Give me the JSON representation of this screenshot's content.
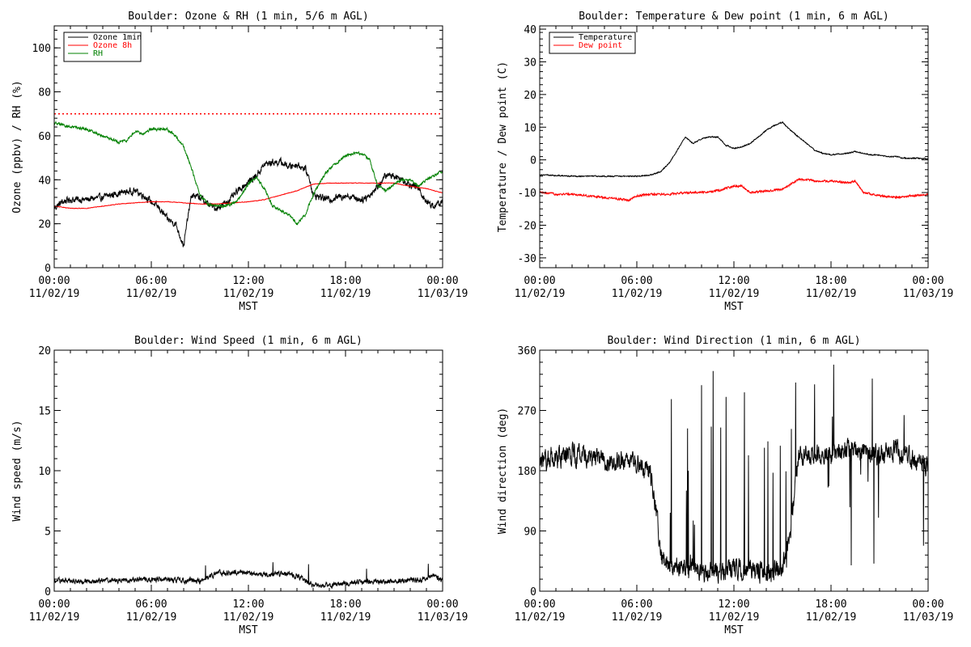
{
  "chart_data": [
    {
      "type": "line",
      "title": "Boulder: Ozone & RH (1 min, 5/6 m AGL)",
      "xlabel": "MST",
      "ylabel": "Ozone (ppbv) / RH (%)",
      "xlim": [
        0,
        24
      ],
      "ylim": [
        0,
        110
      ],
      "yticks": [
        0,
        20,
        40,
        60,
        80,
        100
      ],
      "xticks": [
        "00:00|11/02/19",
        "06:00|11/02/19",
        "12:00|11/02/19",
        "18:00|11/02/19",
        "00:00|11/03/19"
      ],
      "legend": {
        "position": "top-left",
        "entries": [
          {
            "name": "Ozone 1min",
            "color": "#000000"
          },
          {
            "name": "Ozone 8h",
            "color": "#ff0000"
          },
          {
            "name": "RH",
            "color": "#008000"
          }
        ]
      },
      "reference_line": {
        "y": 70,
        "color": "#ff0000",
        "style": "dotted"
      },
      "series": [
        {
          "name": "Ozone 1min",
          "color": "#000000",
          "noise": 2.5,
          "x": [
            0,
            0.5,
            1,
            2,
            3,
            4,
            5,
            5.5,
            6,
            6.5,
            7,
            7.5,
            7.8,
            8,
            8.3,
            8.5,
            9,
            9.5,
            10,
            10.5,
            11,
            11.5,
            12,
            12.5,
            13,
            13.5,
            14,
            14.5,
            15,
            15.5,
            15.8,
            16,
            16.5,
            17,
            17.5,
            18,
            18.5,
            19,
            19.5,
            20,
            20.5,
            21,
            21.5,
            22,
            22.5,
            23,
            23.5,
            24
          ],
          "y": [
            27,
            30,
            31,
            31,
            32,
            34,
            35,
            33,
            30,
            27,
            22,
            20,
            14,
            10,
            25,
            33,
            32,
            29,
            27,
            29,
            32,
            36,
            39,
            42,
            47,
            48,
            48,
            46,
            47,
            45,
            40,
            33,
            32,
            31,
            32,
            33,
            32,
            31,
            33,
            37,
            42,
            42,
            40,
            38,
            36,
            30,
            28,
            30
          ]
        },
        {
          "name": "Ozone 8h",
          "color": "#ff0000",
          "noise": 0.2,
          "x": [
            0,
            1,
            2,
            3,
            4,
            5,
            6,
            7,
            8,
            9,
            10,
            11,
            12,
            13,
            14,
            15,
            16,
            17,
            18,
            19,
            20,
            21,
            22,
            23,
            24
          ],
          "y": [
            28,
            27,
            27,
            28,
            29,
            29.5,
            30,
            30,
            29.5,
            29,
            29,
            29.5,
            30,
            31,
            33,
            35,
            38,
            38.5,
            38.5,
            38.5,
            38.5,
            38.5,
            37,
            36,
            34
          ]
        },
        {
          "name": "RH",
          "color": "#008000",
          "noise": 1.0,
          "x": [
            0,
            0.5,
            1,
            2,
            3,
            4,
            4.5,
            5,
            5.5,
            6,
            6.5,
            7,
            7.5,
            8,
            8.5,
            9,
            9.5,
            10,
            10.5,
            11,
            11.5,
            12,
            12.5,
            13,
            13.5,
            14,
            14.5,
            15,
            15.5,
            16,
            16.5,
            17,
            17.5,
            18,
            18.5,
            19,
            19.5,
            20,
            20.5,
            21,
            21.5,
            22,
            22.5,
            23,
            23.5,
            24
          ],
          "y": [
            66,
            65,
            64,
            63,
            60,
            57,
            58,
            62,
            61,
            63,
            63,
            63,
            60,
            55,
            45,
            33,
            29,
            28,
            28,
            29,
            32,
            38,
            41,
            36,
            28,
            26,
            24,
            20,
            24,
            33,
            40,
            45,
            48,
            51,
            52,
            52,
            49,
            37,
            35,
            38,
            40,
            40,
            37,
            40,
            42,
            44
          ]
        }
      ]
    },
    {
      "type": "line",
      "title": "Boulder: Temperature & Dew point (1 min, 6 m AGL)",
      "xlabel": "MST",
      "ylabel": "Temperature / Dew point (C)",
      "xlim": [
        0,
        24
      ],
      "ylim": [
        -33,
        41
      ],
      "yticks": [
        -30,
        -20,
        -10,
        0,
        10,
        20,
        30,
        40
      ],
      "xticks": [
        "00:00|11/02/19",
        "06:00|11/02/19",
        "12:00|11/02/19",
        "18:00|11/02/19",
        "00:00|11/03/19"
      ],
      "legend": {
        "position": "top-left",
        "entries": [
          {
            "name": "Temperature",
            "color": "#000000"
          },
          {
            "name": "Dew point",
            "color": "#ff0000"
          }
        ]
      },
      "series": [
        {
          "name": "Temperature",
          "color": "#000000",
          "noise": 0.3,
          "x": [
            0,
            1,
            2,
            3,
            4,
            5,
            6,
            6.5,
            7,
            7.5,
            8,
            8.5,
            9,
            9.5,
            10,
            10.5,
            11,
            11.5,
            12,
            12.5,
            13,
            13.5,
            14,
            14.5,
            15,
            15.5,
            16,
            16.5,
            17,
            17.5,
            18,
            18.5,
            19,
            19.5,
            20,
            20.5,
            21,
            21.5,
            22,
            22.5,
            23,
            23.5,
            24
          ],
          "y": [
            -4.5,
            -4.8,
            -5,
            -5,
            -5,
            -5,
            -5,
            -4.8,
            -4.5,
            -3.5,
            -1,
            3,
            7,
            5,
            6.5,
            7,
            7,
            4.5,
            3.5,
            4,
            5,
            7,
            9,
            10.5,
            11.5,
            9,
            7,
            5,
            3,
            2,
            1.5,
            1.8,
            2,
            2.5,
            2,
            1.5,
            1.5,
            1,
            1,
            0.5,
            0.5,
            0.5,
            0.3
          ]
        },
        {
          "name": "Dew point",
          "color": "#ff0000",
          "noise": 0.5,
          "x": [
            0,
            1,
            2,
            3,
            4,
            5,
            5.5,
            6,
            7,
            8,
            9,
            10,
            11,
            12,
            12.5,
            13,
            14,
            15,
            15.5,
            16,
            16.5,
            17,
            18,
            19,
            19.5,
            20,
            21,
            22,
            23,
            24
          ],
          "y": [
            -10,
            -10.5,
            -10.5,
            -11,
            -11.5,
            -12,
            -12.5,
            -11,
            -10.5,
            -10.5,
            -10,
            -10,
            -9.5,
            -8,
            -8,
            -10,
            -9.5,
            -9,
            -7.5,
            -6,
            -6,
            -6.5,
            -6.5,
            -7,
            -6.5,
            -10,
            -11,
            -11.5,
            -11,
            -10.5
          ]
        }
      ]
    },
    {
      "type": "line",
      "title": "Boulder: Wind Speed (1 min, 6 m AGL)",
      "xlabel": "MST",
      "ylabel": "Wind speed (m/s)",
      "xlim": [
        0,
        24
      ],
      "ylim": [
        0,
        20
      ],
      "yticks": [
        0,
        5,
        10,
        15,
        20
      ],
      "xticks": [
        "00:00|11/02/19",
        "06:00|11/02/19",
        "12:00|11/02/19",
        "18:00|11/02/19",
        "00:00|11/03/19"
      ],
      "series": [
        {
          "name": "",
          "color": "#000000",
          "noise": 0.35,
          "x": [
            0,
            2,
            4,
            6,
            8,
            9,
            10,
            11,
            12,
            13,
            14,
            15,
            16,
            17,
            18,
            20,
            22,
            23,
            23.5,
            24
          ],
          "y": [
            0.9,
            0.8,
            0.9,
            1.0,
            0.9,
            0.8,
            1.5,
            1.6,
            1.5,
            1.3,
            1.4,
            1.3,
            0.5,
            0.5,
            0.7,
            0.8,
            0.9,
            1.0,
            1.3,
            0.9
          ]
        }
      ]
    },
    {
      "type": "line",
      "title": "Boulder: Wind Direction (1 min, 6 m AGL)",
      "xlabel": "MST",
      "ylabel": "Wind direction (deg)",
      "xlim": [
        0,
        24
      ],
      "ylim": [
        0,
        360
      ],
      "yticks": [
        0,
        90,
        180,
        270,
        360
      ],
      "xticks": [
        "00:00|11/02/19",
        "06:00|11/02/19",
        "12:00|11/02/19",
        "18:00|11/02/19",
        "00:00|11/03/19"
      ],
      "series": [
        {
          "name": "",
          "color": "#000000",
          "noise": 25,
          "x": [
            0,
            1,
            2,
            3,
            4,
            5,
            6,
            6.8,
            7.2,
            7.5,
            8,
            9,
            10,
            11,
            12,
            13,
            14,
            15,
            15.5,
            16,
            17,
            18,
            19,
            20,
            21,
            22,
            23,
            24
          ],
          "y": [
            195,
            200,
            205,
            200,
            195,
            195,
            190,
            180,
            120,
            50,
            40,
            35,
            30,
            30,
            35,
            30,
            30,
            30,
            90,
            200,
            210,
            200,
            210,
            210,
            200,
            210,
            200,
            190
          ]
        }
      ]
    }
  ]
}
